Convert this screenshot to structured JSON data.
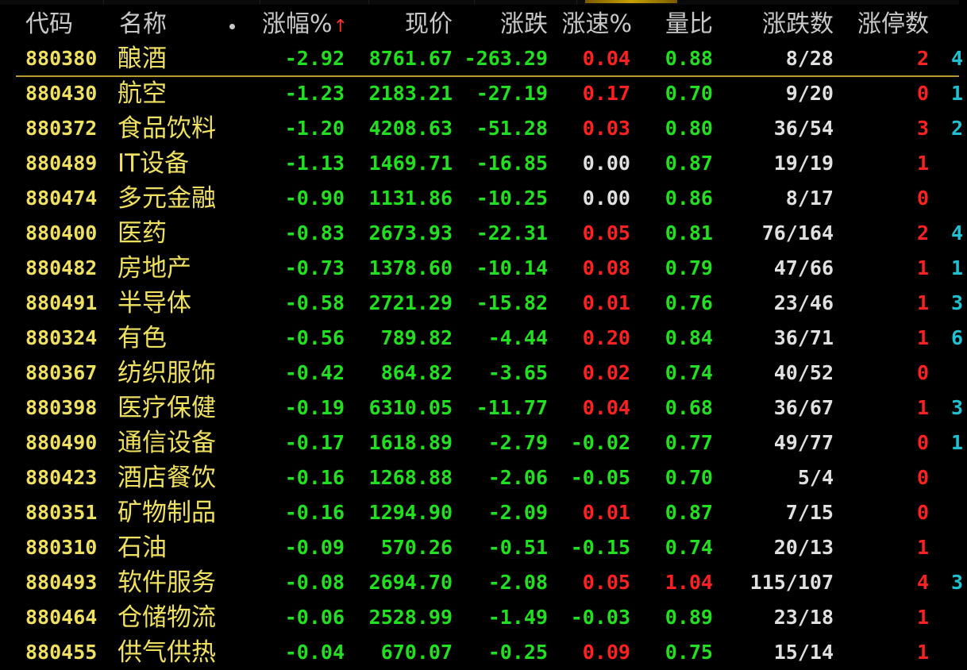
{
  "colors": {
    "background": "#000000",
    "header_text": "#c8c8c8",
    "code_name": "#f0e060",
    "down": "#20e020",
    "up": "#ff2020",
    "flat": "#e0e0e0",
    "edge": "#20c0d0",
    "selection_line": "#b89a30"
  },
  "header": {
    "code": "代码",
    "name": "名称",
    "change_pct": "涨幅%",
    "sort_indicator": "↑",
    "price": "现价",
    "change": "涨跌",
    "speed": "涨速%",
    "volume_ratio": "量比",
    "adv_dec": "涨跌数",
    "limit_up": "涨停数"
  },
  "rows": [
    {
      "code": "880380",
      "name": "酿酒",
      "chg_pct": "-2.92",
      "price": "8761.67",
      "chg": "-263.29",
      "speed": "0.04",
      "speed_dir": "up",
      "vol_ratio": "0.88",
      "vol_dir": "down",
      "adv_dec": "8/28",
      "limit_up": "2",
      "limit_dir": "up",
      "edge": "4"
    },
    {
      "code": "880430",
      "name": "航空",
      "chg_pct": "-1.23",
      "price": "2183.21",
      "chg": "-27.19",
      "speed": "0.17",
      "speed_dir": "up",
      "vol_ratio": "0.70",
      "vol_dir": "down",
      "adv_dec": "9/20",
      "limit_up": "0",
      "limit_dir": "up",
      "edge": "1"
    },
    {
      "code": "880372",
      "name": "食品饮料",
      "chg_pct": "-1.20",
      "price": "4208.63",
      "chg": "-51.28",
      "speed": "0.03",
      "speed_dir": "up",
      "vol_ratio": "0.80",
      "vol_dir": "down",
      "adv_dec": "36/54",
      "limit_up": "3",
      "limit_dir": "up",
      "edge": "2"
    },
    {
      "code": "880489",
      "name": "IT设备",
      "chg_pct": "-1.13",
      "price": "1469.71",
      "chg": "-16.85",
      "speed": "0.00",
      "speed_dir": "flat",
      "vol_ratio": "0.87",
      "vol_dir": "down",
      "adv_dec": "19/19",
      "limit_up": "1",
      "limit_dir": "up",
      "edge": ""
    },
    {
      "code": "880474",
      "name": "多元金融",
      "chg_pct": "-0.90",
      "price": "1131.86",
      "chg": "-10.25",
      "speed": "0.00",
      "speed_dir": "flat",
      "vol_ratio": "0.86",
      "vol_dir": "down",
      "adv_dec": "8/17",
      "limit_up": "0",
      "limit_dir": "up",
      "edge": ""
    },
    {
      "code": "880400",
      "name": "医药",
      "chg_pct": "-0.83",
      "price": "2673.93",
      "chg": "-22.31",
      "speed": "0.05",
      "speed_dir": "up",
      "vol_ratio": "0.81",
      "vol_dir": "down",
      "adv_dec": "76/164",
      "limit_up": "2",
      "limit_dir": "up",
      "edge": "4"
    },
    {
      "code": "880482",
      "name": "房地产",
      "chg_pct": "-0.73",
      "price": "1378.60",
      "chg": "-10.14",
      "speed": "0.08",
      "speed_dir": "up",
      "vol_ratio": "0.79",
      "vol_dir": "down",
      "adv_dec": "47/66",
      "limit_up": "1",
      "limit_dir": "up",
      "edge": "1"
    },
    {
      "code": "880491",
      "name": "半导体",
      "chg_pct": "-0.58",
      "price": "2721.29",
      "chg": "-15.82",
      "speed": "0.01",
      "speed_dir": "up",
      "vol_ratio": "0.76",
      "vol_dir": "down",
      "adv_dec": "23/46",
      "limit_up": "1",
      "limit_dir": "up",
      "edge": "3"
    },
    {
      "code": "880324",
      "name": "有色",
      "chg_pct": "-0.56",
      "price": "789.82",
      "chg": "-4.44",
      "speed": "0.20",
      "speed_dir": "up",
      "vol_ratio": "0.84",
      "vol_dir": "down",
      "adv_dec": "36/71",
      "limit_up": "1",
      "limit_dir": "up",
      "edge": "6"
    },
    {
      "code": "880367",
      "name": "纺织服饰",
      "chg_pct": "-0.42",
      "price": "864.82",
      "chg": "-3.65",
      "speed": "0.02",
      "speed_dir": "up",
      "vol_ratio": "0.74",
      "vol_dir": "down",
      "adv_dec": "40/52",
      "limit_up": "0",
      "limit_dir": "up",
      "edge": ""
    },
    {
      "code": "880398",
      "name": "医疗保健",
      "chg_pct": "-0.19",
      "price": "6310.05",
      "chg": "-11.77",
      "speed": "0.04",
      "speed_dir": "up",
      "vol_ratio": "0.68",
      "vol_dir": "down",
      "adv_dec": "36/67",
      "limit_up": "1",
      "limit_dir": "up",
      "edge": "3"
    },
    {
      "code": "880490",
      "name": "通信设备",
      "chg_pct": "-0.17",
      "price": "1618.89",
      "chg": "-2.79",
      "speed": "-0.02",
      "speed_dir": "down",
      "vol_ratio": "0.77",
      "vol_dir": "down",
      "adv_dec": "49/77",
      "limit_up": "0",
      "limit_dir": "up",
      "edge": "1"
    },
    {
      "code": "880423",
      "name": "酒店餐饮",
      "chg_pct": "-0.16",
      "price": "1268.88",
      "chg": "-2.06",
      "speed": "-0.05",
      "speed_dir": "down",
      "vol_ratio": "0.70",
      "vol_dir": "down",
      "adv_dec": "5/4",
      "limit_up": "0",
      "limit_dir": "up",
      "edge": ""
    },
    {
      "code": "880351",
      "name": "矿物制品",
      "chg_pct": "-0.16",
      "price": "1294.90",
      "chg": "-2.09",
      "speed": "0.01",
      "speed_dir": "up",
      "vol_ratio": "0.87",
      "vol_dir": "down",
      "adv_dec": "7/15",
      "limit_up": "0",
      "limit_dir": "up",
      "edge": ""
    },
    {
      "code": "880310",
      "name": "石油",
      "chg_pct": "-0.09",
      "price": "570.26",
      "chg": "-0.51",
      "speed": "-0.15",
      "speed_dir": "down",
      "vol_ratio": "0.74",
      "vol_dir": "down",
      "adv_dec": "20/13",
      "limit_up": "1",
      "limit_dir": "up",
      "edge": ""
    },
    {
      "code": "880493",
      "name": "软件服务",
      "chg_pct": "-0.08",
      "price": "2694.70",
      "chg": "-2.08",
      "speed": "0.05",
      "speed_dir": "up",
      "vol_ratio": "1.04",
      "vol_dir": "up",
      "adv_dec": "115/107",
      "limit_up": "4",
      "limit_dir": "up",
      "edge": "3"
    },
    {
      "code": "880464",
      "name": "仓储物流",
      "chg_pct": "-0.06",
      "price": "2528.99",
      "chg": "-1.49",
      "speed": "-0.03",
      "speed_dir": "down",
      "vol_ratio": "0.89",
      "vol_dir": "down",
      "adv_dec": "23/18",
      "limit_up": "1",
      "limit_dir": "up",
      "edge": ""
    },
    {
      "code": "880455",
      "name": "供气供热",
      "chg_pct": "-0.04",
      "price": "670.07",
      "chg": "-0.25",
      "speed": "0.09",
      "speed_dir": "up",
      "vol_ratio": "0.75",
      "vol_dir": "down",
      "adv_dec": "15/14",
      "limit_up": "1",
      "limit_dir": "up",
      "edge": ""
    }
  ]
}
